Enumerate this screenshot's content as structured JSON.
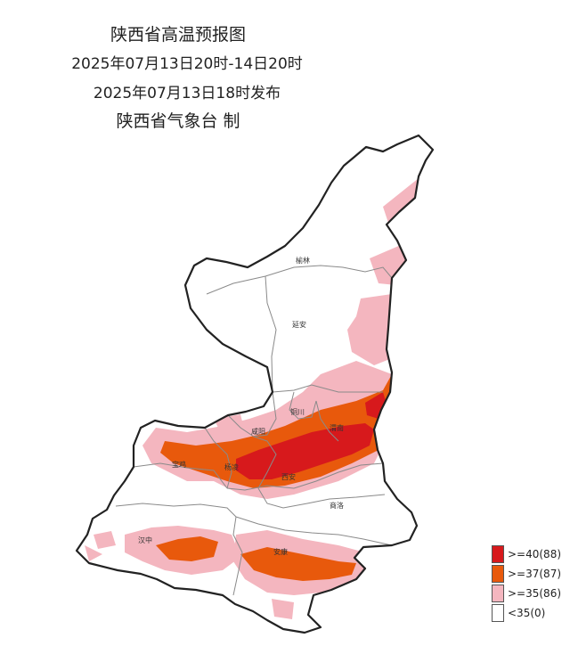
{
  "title": {
    "line1": "陕西省高温预报图",
    "line2": "2025年07月13日20时-14日20时",
    "line3": "2025年07月13日18时发布",
    "line4": "陕西省气象台 制"
  },
  "cities": {
    "yulin": "榆林",
    "yanan": "延安",
    "tongchuan": "铜川",
    "xianyang": "咸阳",
    "weinan": "渭南",
    "baoji": "宝鸡",
    "yangling": "杨凌",
    "xian": "西安",
    "shangluo": "商洛",
    "hanzhong": "汉中",
    "ankang": "安康"
  },
  "legend": [
    {
      "label": ">=40(88)",
      "color": "#d7191c"
    },
    {
      "label": ">=37(87)",
      "color": "#e8590c"
    },
    {
      "label": ">=35(86)",
      "color": "#f4b6bf"
    },
    {
      "label": "<35(0)",
      "color": "#ffffff"
    }
  ],
  "colors": {
    "border": "#222222",
    "district_line": "#8a8a8a",
    "extreme": "#d7191c",
    "very_hot": "#e8590c",
    "hot": "#f4b6bf"
  }
}
